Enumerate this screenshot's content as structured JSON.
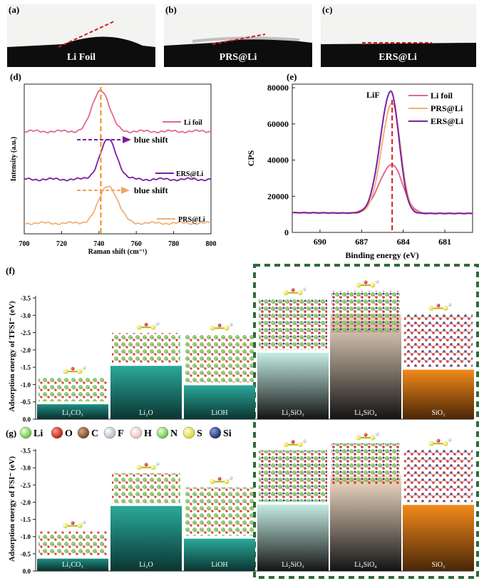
{
  "panels": {
    "a": {
      "label": "(a)",
      "caption": "Li Foil"
    },
    "b": {
      "label": "(b)",
      "caption": "PRS@Li"
    },
    "c": {
      "label": "(c)",
      "caption": "ERS@Li"
    },
    "d": {
      "label": "(d)"
    },
    "e": {
      "label": "(e)"
    },
    "f": {
      "label": "(f)"
    },
    "g": {
      "label": "(g)"
    }
  },
  "colors": {
    "li_foil": "#e0698f",
    "prs": "#f0b07a",
    "ers": "#7a1fa2",
    "dash_red": "#d21e1e",
    "dash_orange": "#f08a1c",
    "green_box": "#2e6b3a"
  },
  "chart_data": [
    {
      "id": "raman",
      "type": "line",
      "xlabel": "Raman shift (cm⁻¹)",
      "ylabel": "Intensity (a.u.)",
      "xlim": [
        700,
        800
      ],
      "xticks": [
        700,
        720,
        740,
        760,
        780,
        800
      ],
      "peak_line_x": 741,
      "annotations": [
        "blue shift",
        "blue shift"
      ],
      "series": [
        {
          "name": "Li foil",
          "color": "#e0698f",
          "peak": 741,
          "offset": 2.2,
          "height": 1.0,
          "width": 4.5
        },
        {
          "name": "ERS@Li",
          "color": "#7a1fa2",
          "peak": 745,
          "offset": 1.05,
          "height": 0.95,
          "width": 4.5
        },
        {
          "name": "PRS@Li",
          "color": "#f0b07a",
          "peak": 745,
          "offset": 0.0,
          "height": 0.9,
          "width": 5
        }
      ]
    },
    {
      "id": "xps",
      "type": "line",
      "xlabel": "Binding energy (eV)",
      "ylabel": "CPS",
      "xlim": [
        692,
        679
      ],
      "ylim": [
        0,
        82000
      ],
      "xticks": [
        690,
        687,
        684,
        681
      ],
      "yticks": [
        0,
        20000,
        40000,
        60000,
        80000
      ],
      "peak_label": "LiF",
      "peak_line_x": 684.8,
      "baseline": 10500,
      "series": [
        {
          "name": "Li foil",
          "color": "#e0698f",
          "peak_height": 37500,
          "center": 684.8,
          "sigma": 0.75
        },
        {
          "name": "PRS@Li",
          "color": "#f0b07a",
          "peak_height": 71500,
          "center": 684.8,
          "sigma": 0.6
        },
        {
          "name": "ERS@Li",
          "color": "#7a1fa2",
          "peak_height": 78000,
          "center": 684.9,
          "sigma": 0.6
        }
      ]
    },
    {
      "id": "tfsi",
      "type": "bar",
      "ylabel": "Adsorption energy of TFSI⁻ (eV)",
      "ylim": [
        0,
        -3.5
      ],
      "yticks": [
        "0.0",
        "-0.5",
        "-1.0",
        "-1.5",
        "-2.0",
        "-2.5",
        "-3.0",
        "-3.5"
      ],
      "categories": [
        "Li₂CO₃",
        "Li₂O",
        "LiOH",
        "Li₂SiO₃",
        "Li₄SiO₄",
        "SiO₂"
      ],
      "values": [
        -0.43,
        -1.54,
        -0.98,
        -1.92,
        -3.05,
        -1.43
      ]
    },
    {
      "id": "fsi",
      "type": "bar",
      "ylabel": "Adsorption energy of FSI⁻ (eV)",
      "ylim": [
        0,
        -3.5
      ],
      "yticks": [
        "0.0",
        "-0.5",
        "-1.0",
        "-1.5",
        "-2.0",
        "-2.5",
        "-3.0",
        "-3.5"
      ],
      "categories": [
        "Li₂CO₃",
        "Li₂O",
        "LiOH",
        "Li₂SiO₃",
        "Li₄SiO₄",
        "SiO₂"
      ],
      "values": [
        -0.36,
        -1.89,
        -0.94,
        -1.93,
        -2.78,
        -1.92
      ]
    }
  ],
  "atom_legend": [
    {
      "symbol": "Li",
      "color": "#7ed957"
    },
    {
      "symbol": "O",
      "color": "#d42a1f"
    },
    {
      "symbol": "C",
      "color": "#8a5a32"
    },
    {
      "symbol": "F",
      "color": "#c7d3de"
    },
    {
      "symbol": "H",
      "color": "#f6d0d0"
    },
    {
      "symbol": "N",
      "color": "#7ed957"
    },
    {
      "symbol": "S",
      "color": "#f2ec5a"
    },
    {
      "symbol": "Si",
      "color": "#2b3d87"
    }
  ]
}
